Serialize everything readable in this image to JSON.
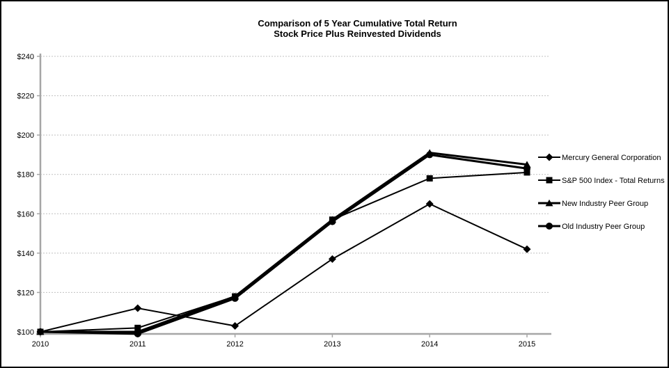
{
  "chart_data": {
    "type": "line",
    "title": "Comparison of 5 Year Cumulative Total Return",
    "subtitle": "Stock Price Plus Reinvested Dividends",
    "categories": [
      "2010",
      "2011",
      "2012",
      "2013",
      "2014",
      "2015"
    ],
    "y_axis": {
      "min": 100,
      "max": 240,
      "step": 20,
      "tick_labels": [
        "$100",
        "$120",
        "$140",
        "$160",
        "$180",
        "$200",
        "$220",
        "$240"
      ]
    },
    "series": [
      {
        "name": "Mercury General Corporation",
        "marker": "diamond",
        "line_width": 2,
        "values": [
          100,
          112,
          103,
          137,
          165,
          142
        ]
      },
      {
        "name": "S&P 500 Index - Total Returns",
        "marker": "square",
        "line_width": 2,
        "values": [
          100,
          102,
          118,
          157,
          178,
          181
        ]
      },
      {
        "name": "New Industry Peer Group",
        "marker": "triangle",
        "line_width": 3,
        "values": [
          100,
          100,
          118,
          157,
          191,
          185
        ]
      },
      {
        "name": "Old Industry Peer Group",
        "marker": "circle",
        "line_width": 3,
        "values": [
          100,
          99,
          117,
          156,
          190,
          183
        ]
      }
    ],
    "legend_position": "right",
    "grid": "horizontal-dashed",
    "colors": {
      "series": "#000000",
      "axis": "#a6a6a6",
      "gridline": "#c0c0c0",
      "text": "#000000",
      "background": "#ffffff",
      "border": "#000000"
    }
  }
}
